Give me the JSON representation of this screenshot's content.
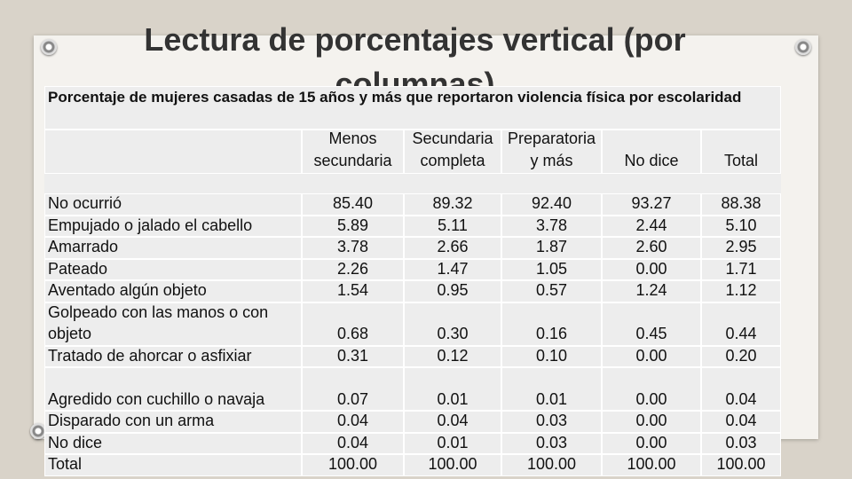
{
  "slide": {
    "title": "Lectura de porcentajes vertical (por columnas)"
  },
  "table": {
    "caption": "Porcentaje de mujeres casadas de 15 años  y más que reportaron violencia física por escolaridad",
    "headers": [
      "Menos secundaria",
      "Secundaria completa",
      "Preparatoria y más",
      "No dice",
      "Total"
    ],
    "rows": [
      [
        "No ocurrió",
        "85.40",
        "89.32",
        "92.40",
        "93.27",
        "88.38"
      ],
      [
        "Empujado o jalado el cabello",
        "5.89",
        "5.11",
        "3.78",
        "2.44",
        "5.10"
      ],
      [
        "Amarrado",
        "3.78",
        "2.66",
        "1.87",
        "2.60",
        "2.95"
      ],
      [
        "Pateado",
        "2.26",
        "1.47",
        "1.05",
        "0.00",
        "1.71"
      ],
      [
        "Aventado algún objeto",
        "1.54",
        "0.95",
        "0.57",
        "1.24",
        "1.12"
      ],
      [
        "Golpeado con las manos o con objeto",
        "0.68",
        "0.30",
        "0.16",
        "0.45",
        "0.44"
      ],
      [
        "Tratado de ahorcar o asfixiar",
        "0.31",
        "0.12",
        "0.10",
        "0.00",
        "0.20"
      ],
      [
        "Agredido con cuchillo o navaja",
        "0.07",
        "0.01",
        "0.01",
        "0.00",
        "0.04"
      ],
      [
        "Disparado con un arma",
        "0.04",
        "0.04",
        "0.03",
        "0.00",
        "0.04"
      ],
      [
        "No dice",
        "0.04",
        "0.01",
        "0.03",
        "0.00",
        "0.03"
      ],
      [
        "Total",
        "100.00",
        "100.00",
        "100.00",
        "100.00",
        "100.00"
      ]
    ]
  }
}
